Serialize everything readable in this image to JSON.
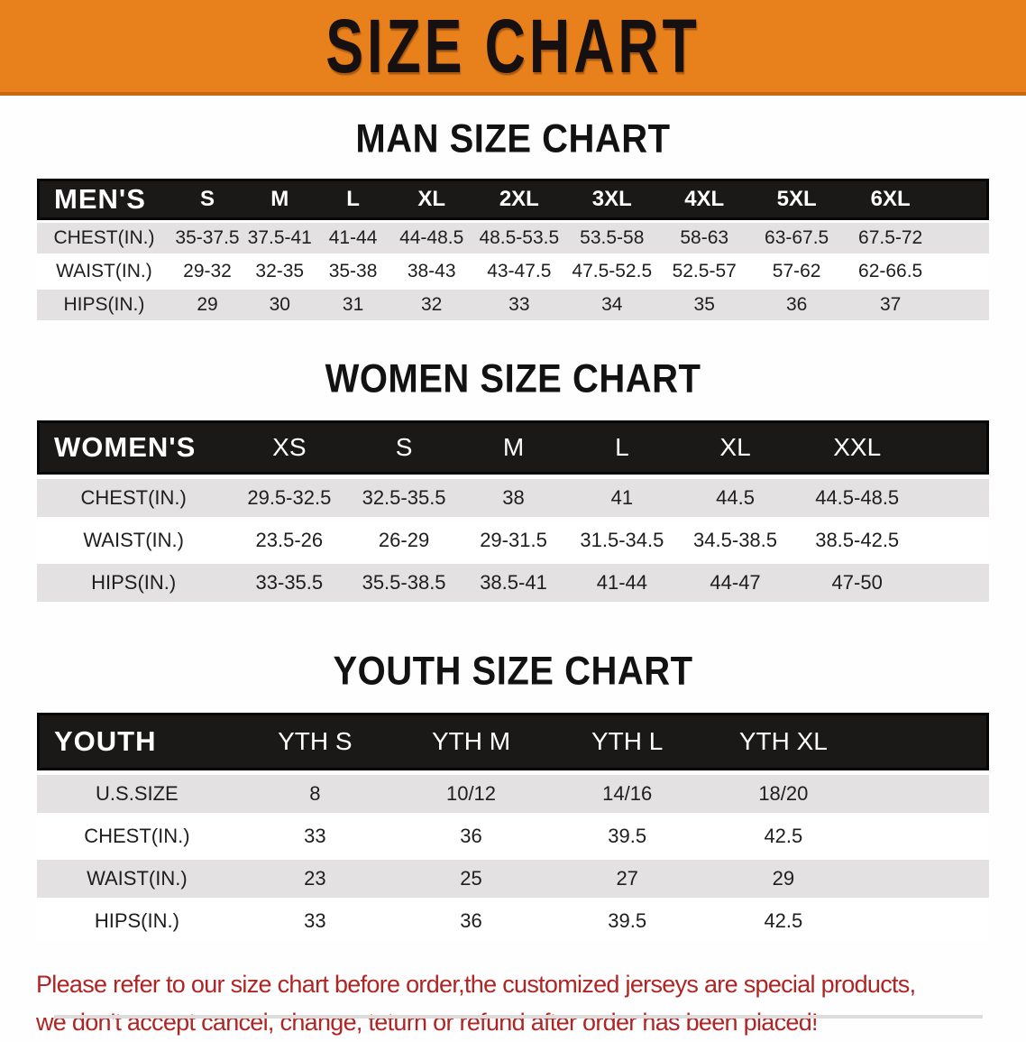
{
  "banner": {
    "title": "SIZE CHART",
    "bg_color": "#e8811c"
  },
  "sections": [
    {
      "title": "MAN SIZE CHART",
      "table": {
        "header": [
          "MEN'S",
          "S",
          "M",
          "L",
          "XL",
          "2XL",
          "3XL",
          "4XL",
          "5XL",
          "6XL",
          ""
        ],
        "rows": [
          [
            "CHEST(IN.)",
            "35-37.5",
            "37.5-41",
            "41-44",
            "44-48.5",
            "48.5-53.5",
            "53.5-58",
            "58-63",
            "63-67.5",
            "67.5-72",
            ""
          ],
          [
            "WAIST(IN.)",
            "29-32",
            "32-35",
            "35-38",
            "38-43",
            "43-47.5",
            "47.5-52.5",
            "52.5-57",
            "57-62",
            "62-66.5",
            ""
          ],
          [
            "HIPS(IN.)",
            "29",
            "30",
            "31",
            "32",
            "33",
            "34",
            "35",
            "36",
            "37",
            ""
          ]
        ]
      }
    },
    {
      "title": "WOMEN SIZE CHART",
      "table": {
        "header": [
          "WOMEN'S",
          "XS",
          "S",
          "M",
          "L",
          "XL",
          "XXL",
          ""
        ],
        "rows": [
          [
            "CHEST(IN.)",
            "29.5-32.5",
            "32.5-35.5",
            "38",
            "41",
            "44.5",
            "44.5-48.5",
            ""
          ],
          [
            "WAIST(IN.)",
            "23.5-26",
            "26-29",
            "29-31.5",
            "31.5-34.5",
            "34.5-38.5",
            "38.5-42.5",
            ""
          ],
          [
            "HIPS(IN.)",
            "33-35.5",
            "35.5-38.5",
            "38.5-41",
            "41-44",
            "44-47",
            "47-50",
            ""
          ]
        ]
      }
    },
    {
      "title": "YOUTH SIZE CHART",
      "table": {
        "header": [
          "YOUTH",
          "YTH S",
          "YTH M",
          "YTH L",
          "YTH XL",
          ""
        ],
        "rows": [
          [
            "U.S.SIZE",
            "8",
            "10/12",
            "14/16",
            "18/20",
            ""
          ],
          [
            "CHEST(IN.)",
            "33",
            "36",
            "39.5",
            "42.5",
            ""
          ],
          [
            "WAIST(IN.)",
            "23",
            "25",
            "27",
            "29",
            ""
          ],
          [
            "HIPS(IN.)",
            "33",
            "36",
            "39.5",
            "42.5",
            ""
          ]
        ]
      }
    }
  ],
  "footer": {
    "line1": "Please refer to our size chart before order,the customized jerseys are special products,",
    "line2": "we don't accept cancel, change, teturn or refund after order has been placed!",
    "text_color": "#b02424"
  }
}
